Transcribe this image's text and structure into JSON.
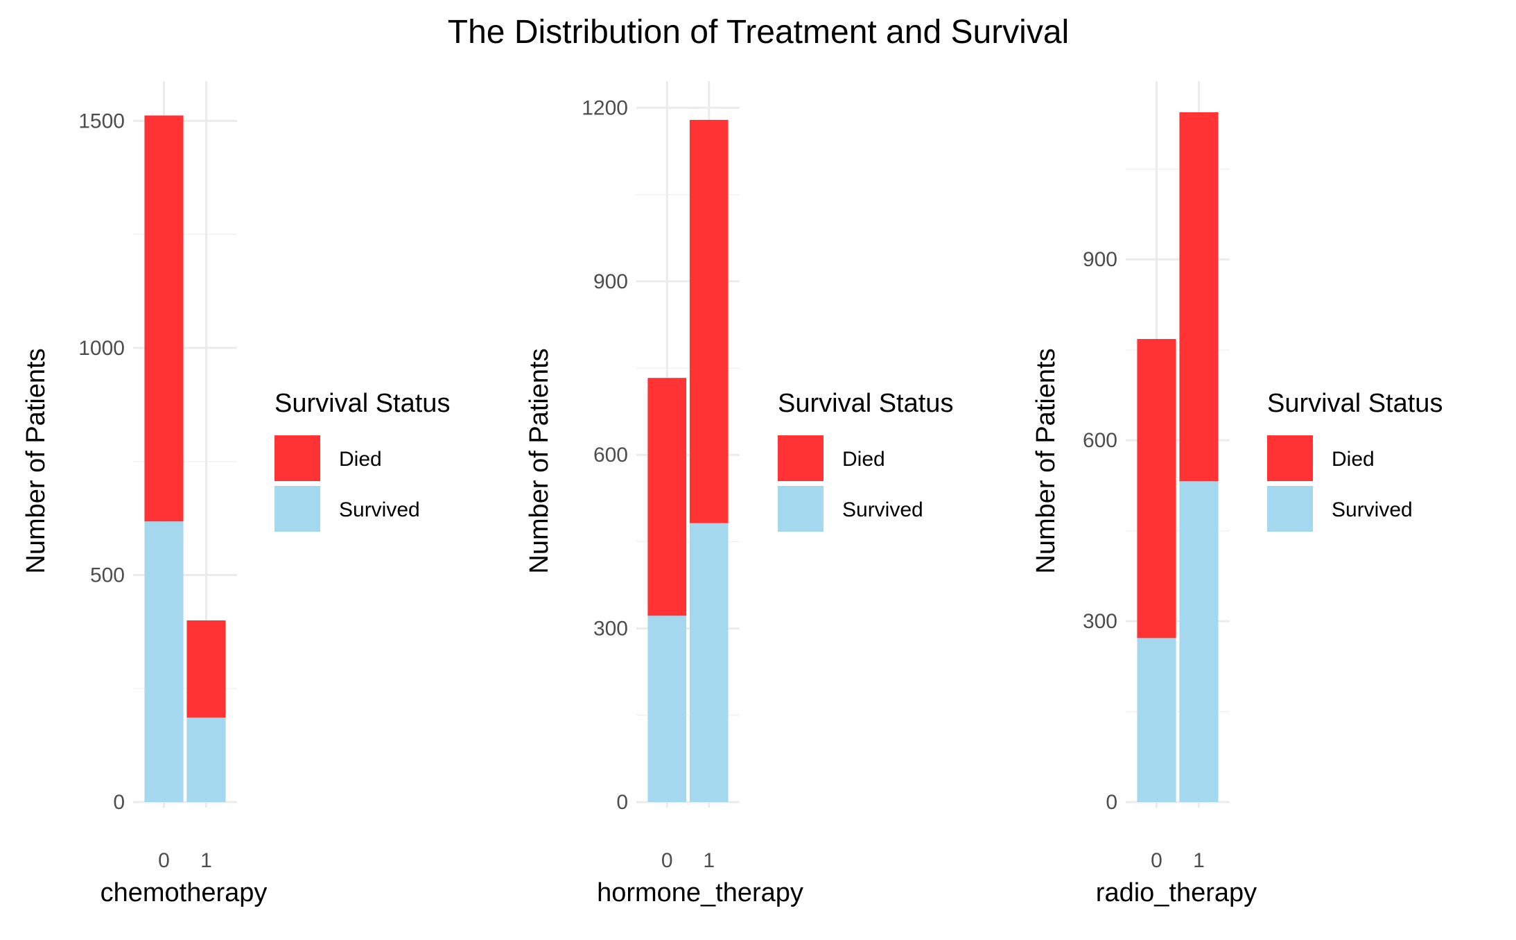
{
  "title": "The Distribution of Treatment and Survival",
  "colors": {
    "Died": "#ff3333",
    "Survived": "#a4d8ee"
  },
  "chart_data": [
    {
      "type": "bar",
      "stacked": true,
      "xlabel": "chemotherapy",
      "ylabel": "Number of Patients",
      "categories": [
        "0",
        "1"
      ],
      "series": [
        {
          "name": "Survived",
          "values": [
            618,
            186
          ]
        },
        {
          "name": "Died",
          "values": [
            894,
            214
          ]
        }
      ],
      "ylim": [
        0,
        1580
      ],
      "yticks": [
        0,
        500,
        1000,
        1500
      ],
      "grid": true,
      "legend": {
        "title": "Survival Status",
        "position": "right",
        "entries": [
          "Died",
          "Survived"
        ]
      }
    },
    {
      "type": "bar",
      "stacked": true,
      "xlabel": "hormone_therapy",
      "ylabel": "Number of Patients",
      "categories": [
        "0",
        "1"
      ],
      "series": [
        {
          "name": "Survived",
          "values": [
            322,
            482
          ]
        },
        {
          "name": "Died",
          "values": [
            411,
            697
          ]
        }
      ],
      "ylim": [
        0,
        1240
      ],
      "yticks": [
        0,
        300,
        600,
        900,
        1200
      ],
      "grid": true,
      "legend": {
        "title": "Survival Status",
        "position": "right",
        "entries": [
          "Died",
          "Survived"
        ]
      }
    },
    {
      "type": "bar",
      "stacked": true,
      "xlabel": "radio_therapy",
      "ylabel": "Number of Patients",
      "categories": [
        "0",
        "1"
      ],
      "series": [
        {
          "name": "Survived",
          "values": [
            272,
            532
          ]
        },
        {
          "name": "Died",
          "values": [
            496,
            612
          ]
        }
      ],
      "ylim": [
        0,
        1190
      ],
      "yticks": [
        0,
        300,
        600,
        900
      ],
      "grid": true,
      "legend": {
        "title": "Survival Status",
        "position": "right",
        "entries": [
          "Died",
          "Survived"
        ]
      }
    }
  ]
}
